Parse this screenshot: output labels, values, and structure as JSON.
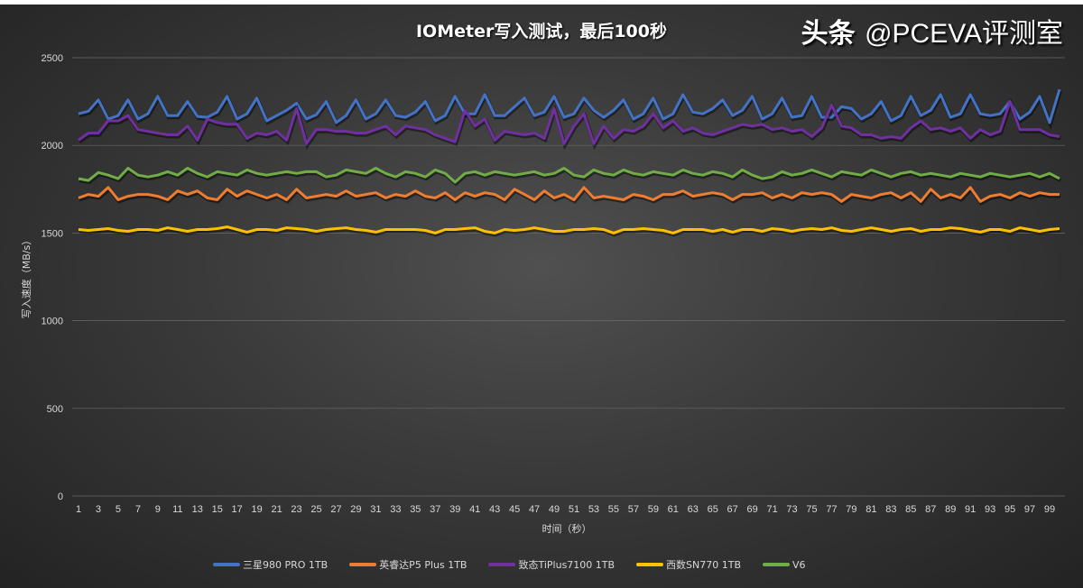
{
  "chart_data": {
    "type": "line",
    "title": "IOMeter写入测试，最后100秒",
    "xlabel": "时间（秒）",
    "ylabel": "写入速度（MB/s）",
    "ylim": [
      0,
      2500
    ],
    "yticks": [
      0,
      500,
      1000,
      1500,
      2000,
      2500
    ],
    "xlim": [
      1,
      100
    ],
    "xticks": [
      1,
      3,
      5,
      7,
      9,
      11,
      13,
      15,
      17,
      19,
      21,
      23,
      25,
      27,
      29,
      31,
      33,
      35,
      37,
      39,
      41,
      43,
      45,
      47,
      49,
      51,
      53,
      55,
      57,
      59,
      61,
      63,
      65,
      67,
      69,
      71,
      73,
      75,
      77,
      79,
      81,
      83,
      85,
      87,
      89,
      91,
      93,
      95,
      97,
      99
    ],
    "grid": "horizontal",
    "legend_position": "bottom",
    "series": [
      {
        "name": "三星980 PRO 1TB",
        "color": "#4472c4",
        "values": [
          2180,
          2195,
          2260,
          2150,
          2170,
          2260,
          2150,
          2180,
          2280,
          2170,
          2170,
          2250,
          2165,
          2160,
          2190,
          2280,
          2150,
          2180,
          2270,
          2140,
          2170,
          2200,
          2240,
          2150,
          2175,
          2250,
          2130,
          2170,
          2260,
          2150,
          2180,
          2260,
          2170,
          2160,
          2190,
          2250,
          2140,
          2170,
          2280,
          2180,
          2180,
          2290,
          2170,
          2170,
          2220,
          2270,
          2170,
          2190,
          2280,
          2160,
          2180,
          2270,
          2200,
          2160,
          2200,
          2260,
          2150,
          2180,
          2270,
          2150,
          2180,
          2290,
          2190,
          2180,
          2210,
          2260,
          2170,
          2200,
          2280,
          2150,
          2180,
          2270,
          2160,
          2170,
          2280,
          2160,
          2160,
          2220,
          2210,
          2150,
          2180,
          2250,
          2140,
          2170,
          2280,
          2170,
          2200,
          2290,
          2160,
          2180,
          2290,
          2180,
          2170,
          2180,
          2250,
          2150,
          2190,
          2280,
          2130,
          2320
        ]
      },
      {
        "name": "英睿达P5 Plus 1TB",
        "color": "#ed7d31",
        "values": [
          1700,
          1720,
          1710,
          1760,
          1690,
          1710,
          1720,
          1720,
          1710,
          1690,
          1740,
          1720,
          1740,
          1700,
          1690,
          1750,
          1710,
          1740,
          1720,
          1700,
          1720,
          1690,
          1750,
          1700,
          1710,
          1720,
          1710,
          1740,
          1710,
          1720,
          1730,
          1700,
          1720,
          1710,
          1740,
          1710,
          1700,
          1730,
          1690,
          1730,
          1710,
          1730,
          1720,
          1690,
          1750,
          1720,
          1690,
          1740,
          1700,
          1720,
          1690,
          1760,
          1700,
          1710,
          1700,
          1690,
          1720,
          1710,
          1690,
          1720,
          1720,
          1740,
          1710,
          1720,
          1730,
          1720,
          1690,
          1720,
          1720,
          1730,
          1700,
          1720,
          1700,
          1730,
          1720,
          1730,
          1720,
          1680,
          1720,
          1710,
          1700,
          1720,
          1730,
          1700,
          1730,
          1680,
          1750,
          1700,
          1720,
          1700,
          1760,
          1680,
          1710,
          1720,
          1700,
          1730,
          1710,
          1730,
          1720,
          1720
        ]
      },
      {
        "name": "致态TiPlus7100 1TB",
        "color": "#7030a0",
        "values": [
          2030,
          2070,
          2070,
          2140,
          2140,
          2170,
          2090,
          2080,
          2070,
          2060,
          2060,
          2110,
          2030,
          2150,
          2130,
          2120,
          2120,
          2040,
          2070,
          2060,
          2080,
          2030,
          2210,
          2010,
          2090,
          2090,
          2080,
          2080,
          2070,
          2070,
          2090,
          2110,
          2060,
          2110,
          2100,
          2090,
          2060,
          2040,
          2020,
          2200,
          2110,
          2150,
          2030,
          2080,
          2070,
          2060,
          2070,
          2040,
          2210,
          2010,
          2110,
          2180,
          2010,
          2110,
          2040,
          2090,
          2080,
          2110,
          2180,
          2100,
          2140,
          2080,
          2100,
          2070,
          2060,
          2080,
          2100,
          2120,
          2110,
          2120,
          2090,
          2100,
          2080,
          2090,
          2050,
          2100,
          2230,
          2110,
          2100,
          2060,
          2060,
          2040,
          2050,
          2040,
          2100,
          2140,
          2090,
          2100,
          2080,
          2100,
          2040,
          2090,
          2060,
          2080,
          2250,
          2090,
          2090,
          2090,
          2060,
          2050
        ]
      },
      {
        "name": "西数SN770 1TB",
        "color": "#ffc000",
        "values": [
          1520,
          1515,
          1520,
          1525,
          1515,
          1510,
          1520,
          1520,
          1515,
          1530,
          1520,
          1510,
          1520,
          1520,
          1525,
          1535,
          1520,
          1505,
          1520,
          1520,
          1515,
          1530,
          1525,
          1520,
          1510,
          1520,
          1525,
          1530,
          1520,
          1515,
          1505,
          1520,
          1520,
          1520,
          1520,
          1515,
          1500,
          1520,
          1520,
          1525,
          1530,
          1510,
          1500,
          1520,
          1515,
          1520,
          1530,
          1520,
          1510,
          1510,
          1520,
          1520,
          1525,
          1520,
          1500,
          1520,
          1520,
          1525,
          1520,
          1515,
          1500,
          1520,
          1520,
          1520,
          1510,
          1520,
          1505,
          1520,
          1520,
          1510,
          1525,
          1520,
          1510,
          1520,
          1525,
          1520,
          1530,
          1515,
          1510,
          1520,
          1530,
          1520,
          1510,
          1520,
          1525,
          1510,
          1520,
          1520,
          1530,
          1525,
          1515,
          1505,
          1520,
          1520,
          1510,
          1530,
          1520,
          1510,
          1520,
          1525
        ]
      },
      {
        "name": "V6",
        "color": "#70ad47",
        "values": [
          1810,
          1800,
          1845,
          1830,
          1810,
          1870,
          1830,
          1820,
          1830,
          1850,
          1830,
          1870,
          1840,
          1820,
          1850,
          1840,
          1830,
          1860,
          1840,
          1830,
          1840,
          1850,
          1840,
          1850,
          1850,
          1820,
          1830,
          1860,
          1850,
          1840,
          1870,
          1840,
          1820,
          1850,
          1840,
          1820,
          1860,
          1840,
          1790,
          1840,
          1850,
          1830,
          1850,
          1840,
          1830,
          1840,
          1850,
          1830,
          1840,
          1870,
          1830,
          1820,
          1860,
          1840,
          1830,
          1860,
          1840,
          1830,
          1850,
          1840,
          1830,
          1860,
          1840,
          1830,
          1850,
          1840,
          1820,
          1860,
          1830,
          1810,
          1820,
          1850,
          1830,
          1840,
          1860,
          1840,
          1820,
          1850,
          1840,
          1830,
          1860,
          1840,
          1820,
          1840,
          1850,
          1830,
          1840,
          1830,
          1820,
          1840,
          1830,
          1820,
          1840,
          1830,
          1820,
          1830,
          1840,
          1820,
          1840,
          1810
        ]
      }
    ]
  },
  "watermark": {
    "brand": "头条",
    "handle": "@PCEVA评测室"
  }
}
